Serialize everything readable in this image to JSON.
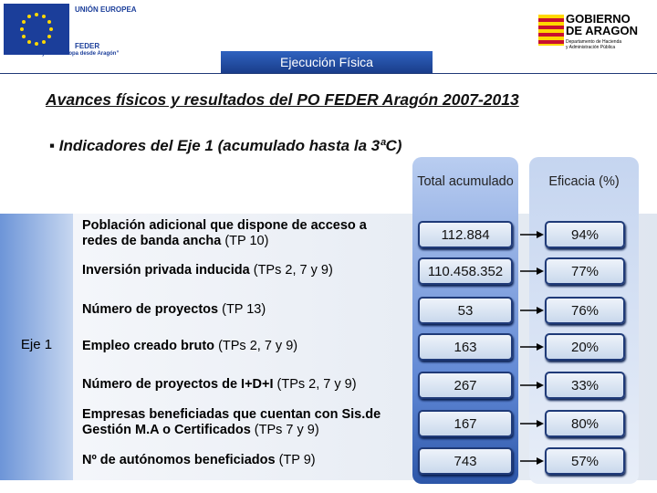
{
  "header": {
    "eu_name": "UNIÓN EUROPEA",
    "fund": "FEDER",
    "motto": "“Construyendo Europa desde Aragón”",
    "gov_name_1": "GOBIERNO",
    "gov_name_2": "DE ARAGON",
    "gov_dept_1": "Departamento de Hacienda",
    "gov_dept_2": "y Administración Pública"
  },
  "tab": "Ejecución Física",
  "title": "Avances físicos y resultados del PO FEDER Aragón 2007-2013",
  "bullet": "Indicadores del Eje 1 (acumulado hasta la 3ªC)",
  "table": {
    "columns": [
      "Total acumulado",
      "Eficacia (%)"
    ],
    "group": "Eje 1",
    "rows": [
      {
        "label": "Población adicional que dispone de acceso a redes de banda ancha",
        "ref": "(TP 10)",
        "total": "112.884",
        "eficacia": "94%"
      },
      {
        "label": "Inversión privada inducida",
        "ref": "(TPs 2, 7 y 9)",
        "total": "110.458.352",
        "eficacia": "77%"
      },
      {
        "label": "Número de proyectos",
        "ref": "(TP 13)",
        "total": "53",
        "eficacia": "76%"
      },
      {
        "label": "Empleo creado bruto",
        "ref": "(TPs 2, 7 y 9)",
        "total": "163",
        "eficacia": "20%"
      },
      {
        "label": "Número de proyectos de I+D+I",
        "ref": "(TPs 2, 7 y 9)",
        "total": "267",
        "eficacia": "33%"
      },
      {
        "label": "Empresas beneficiadas que cuentan con Sis.de Gestión M.A o Certificados",
        "ref": "(TPs 7 y 9)",
        "total": "167",
        "eficacia": "80%"
      },
      {
        "label": "Nº de autónomos beneficiados",
        "ref": "(TP 9)",
        "total": "743",
        "eficacia": "57%"
      }
    ]
  }
}
